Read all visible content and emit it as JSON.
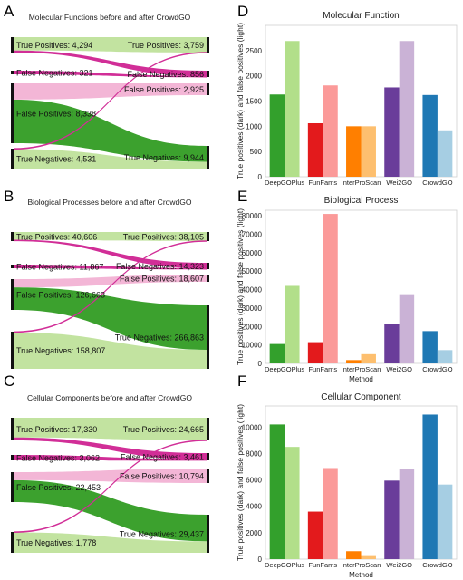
{
  "panel_letters": {
    "A": "A",
    "B": "B",
    "C": "C",
    "D": "D",
    "E": "E",
    "F": "F"
  },
  "colors": {
    "tp_flow": "#c2e3a0",
    "tn_flow": "#3ca12e",
    "fp_flow": "#f3b6d6",
    "fn_flow": "#d12e97",
    "deepgoplus": [
      "#33a02c",
      "#b2df8a"
    ],
    "funfams": [
      "#e31a1c",
      "#fb9a99"
    ],
    "interproscan": [
      "#ff7f00",
      "#fdbf6f"
    ],
    "wei2go": [
      "#6a3d9a",
      "#cab2d6"
    ],
    "crowdgo": [
      "#1f78b4",
      "#a6cee3"
    ]
  },
  "chart_data": [
    {
      "type": "sankey",
      "panel": "A",
      "title": "Molecular Functions before and after CrowdGO",
      "left_nodes": [
        {
          "label": "True Positives: 4,294",
          "value": 4294
        },
        {
          "label": "False Negatives: 321",
          "value": 321
        },
        {
          "label": "False Positives: 8,338",
          "value": 8338
        },
        {
          "label": "True Negatives: 4,531",
          "value": 4531
        }
      ],
      "right_nodes": [
        {
          "label": "True Positives: 3,759",
          "value": 3759
        },
        {
          "label": "False Negatives: 856",
          "value": 856
        },
        {
          "label": "False Positives: 2,925",
          "value": 2925
        },
        {
          "label": "True Negatives: 9,944",
          "value": 9944
        }
      ]
    },
    {
      "type": "sankey",
      "panel": "B",
      "title": "Biological Processes before and after CrowdGO",
      "left_nodes": [
        {
          "label": "True Positives: 40,606",
          "value": 40606
        },
        {
          "label": "False Negatives: 11,867",
          "value": 11867
        },
        {
          "label": "False Positives: 126,663",
          "value": 126663
        },
        {
          "label": "True Negatives: 158,807",
          "value": 158807
        }
      ],
      "right_nodes": [
        {
          "label": "True Positives: 38,105",
          "value": 38105
        },
        {
          "label": "False Negatives: 14,323",
          "value": 14323
        },
        {
          "label": "False Positives: 18,607",
          "value": 18607
        },
        {
          "label": "True Negatives: 266,863",
          "value": 266863
        }
      ]
    },
    {
      "type": "sankey",
      "panel": "C",
      "title": "Cellular Components before and after CrowdGO",
      "left_nodes": [
        {
          "label": "True Positives: 17,330",
          "value": 17330
        },
        {
          "label": "False Negatives: 3,062",
          "value": 3062
        },
        {
          "label": "False Positives: 22,453",
          "value": 22453
        },
        {
          "label": "True Negatives: 1,778",
          "value": 1778
        }
      ],
      "right_nodes": [
        {
          "label": "True Positives: 24,665",
          "value": 24665
        },
        {
          "label": "False Negatives: 3,461",
          "value": 3461
        },
        {
          "label": "False Positives: 10,794",
          "value": 10794
        },
        {
          "label": "True Negatives: 29,437",
          "value": 29437
        }
      ]
    },
    {
      "type": "bar",
      "panel": "D",
      "title": "Molecular Function",
      "ylabel": "True positives (dark) and false positives (light)",
      "xlabel": "",
      "categories": [
        "DeepGOPlus",
        "FunFams",
        "InterProScan",
        "Wei2GO",
        "CrowdGO"
      ],
      "series": [
        {
          "values": [
            1630,
            1060,
            1000,
            1770,
            1620
          ]
        },
        {
          "values": [
            2690,
            1810,
            1000,
            2690,
            920
          ]
        }
      ],
      "ylim": [
        0,
        3000
      ],
      "yticks": [
        0,
        500,
        1000,
        1500,
        2000,
        2500
      ]
    },
    {
      "type": "bar",
      "panel": "E",
      "title": "Biological Process",
      "ylabel": "True positives (dark) and false positives (light)",
      "xlabel": "Method",
      "categories": [
        "DeepGOPlus",
        "FunFams",
        "InterProScan",
        "Wei2GO",
        "CrowdGO"
      ],
      "series": [
        {
          "values": [
            10500,
            11500,
            1800,
            21500,
            17500
          ]
        },
        {
          "values": [
            42000,
            81000,
            5000,
            37500,
            7200
          ]
        }
      ],
      "ylim": [
        0,
        83000
      ],
      "yticks": [
        0,
        10000,
        20000,
        30000,
        40000,
        50000,
        60000,
        70000,
        80000
      ]
    },
    {
      "type": "bar",
      "panel": "F",
      "title": "Cellular Component",
      "ylabel": "True positives (dark) and false positives (light)",
      "xlabel": "Method",
      "categories": [
        "DeepGOPlus",
        "FunFams",
        "InterProScan",
        "Wei2GO",
        "CrowdGO"
      ],
      "series": [
        {
          "values": [
            10200,
            3600,
            600,
            5950,
            10950
          ]
        },
        {
          "values": [
            8500,
            6900,
            300,
            6850,
            5650
          ]
        }
      ],
      "ylim": [
        0,
        11600
      ],
      "yticks": [
        0,
        2000,
        4000,
        6000,
        8000,
        10000
      ]
    }
  ]
}
